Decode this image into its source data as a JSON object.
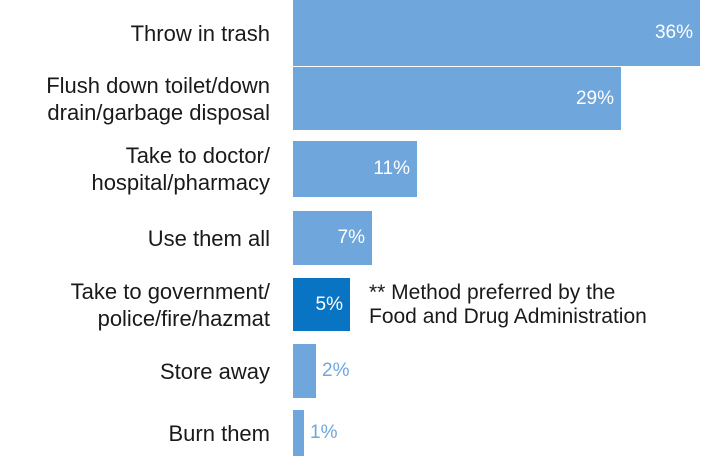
{
  "chart_data": {
    "type": "bar",
    "orientation": "horizontal",
    "categories": [
      "Throw in trash",
      "Flush down toilet/down drain/garbage disposal",
      "Take to doctor/ hospital/pharmacy",
      "Use them all",
      "Take to government/ police/fire/hazmat",
      "Store away",
      "Burn them"
    ],
    "category_lines": [
      [
        "Throw in trash"
      ],
      [
        "Flush down toilet/down",
        "drain/garbage disposal"
      ],
      [
        "Take to doctor/",
        "hospital/pharmacy"
      ],
      [
        "Use them all"
      ],
      [
        "Take to government/",
        "police/fire/hazmat"
      ],
      [
        "Store away"
      ],
      [
        "Burn them"
      ]
    ],
    "values": [
      36,
      29,
      11,
      7,
      5,
      2,
      1
    ],
    "value_labels": [
      "36%",
      "29%",
      "11%",
      "7%",
      "5%",
      "2%",
      "1%"
    ],
    "highlight_index": 4,
    "colors": {
      "bar": "#6fa6dc",
      "highlight": "#0a74c4",
      "outside_label": "#6fa6dc"
    },
    "xlim": [
      0,
      36
    ],
    "annotation": "** Method preferred by the\nFood and Drug Administration",
    "title": "",
    "xlabel": "",
    "ylabel": ""
  }
}
